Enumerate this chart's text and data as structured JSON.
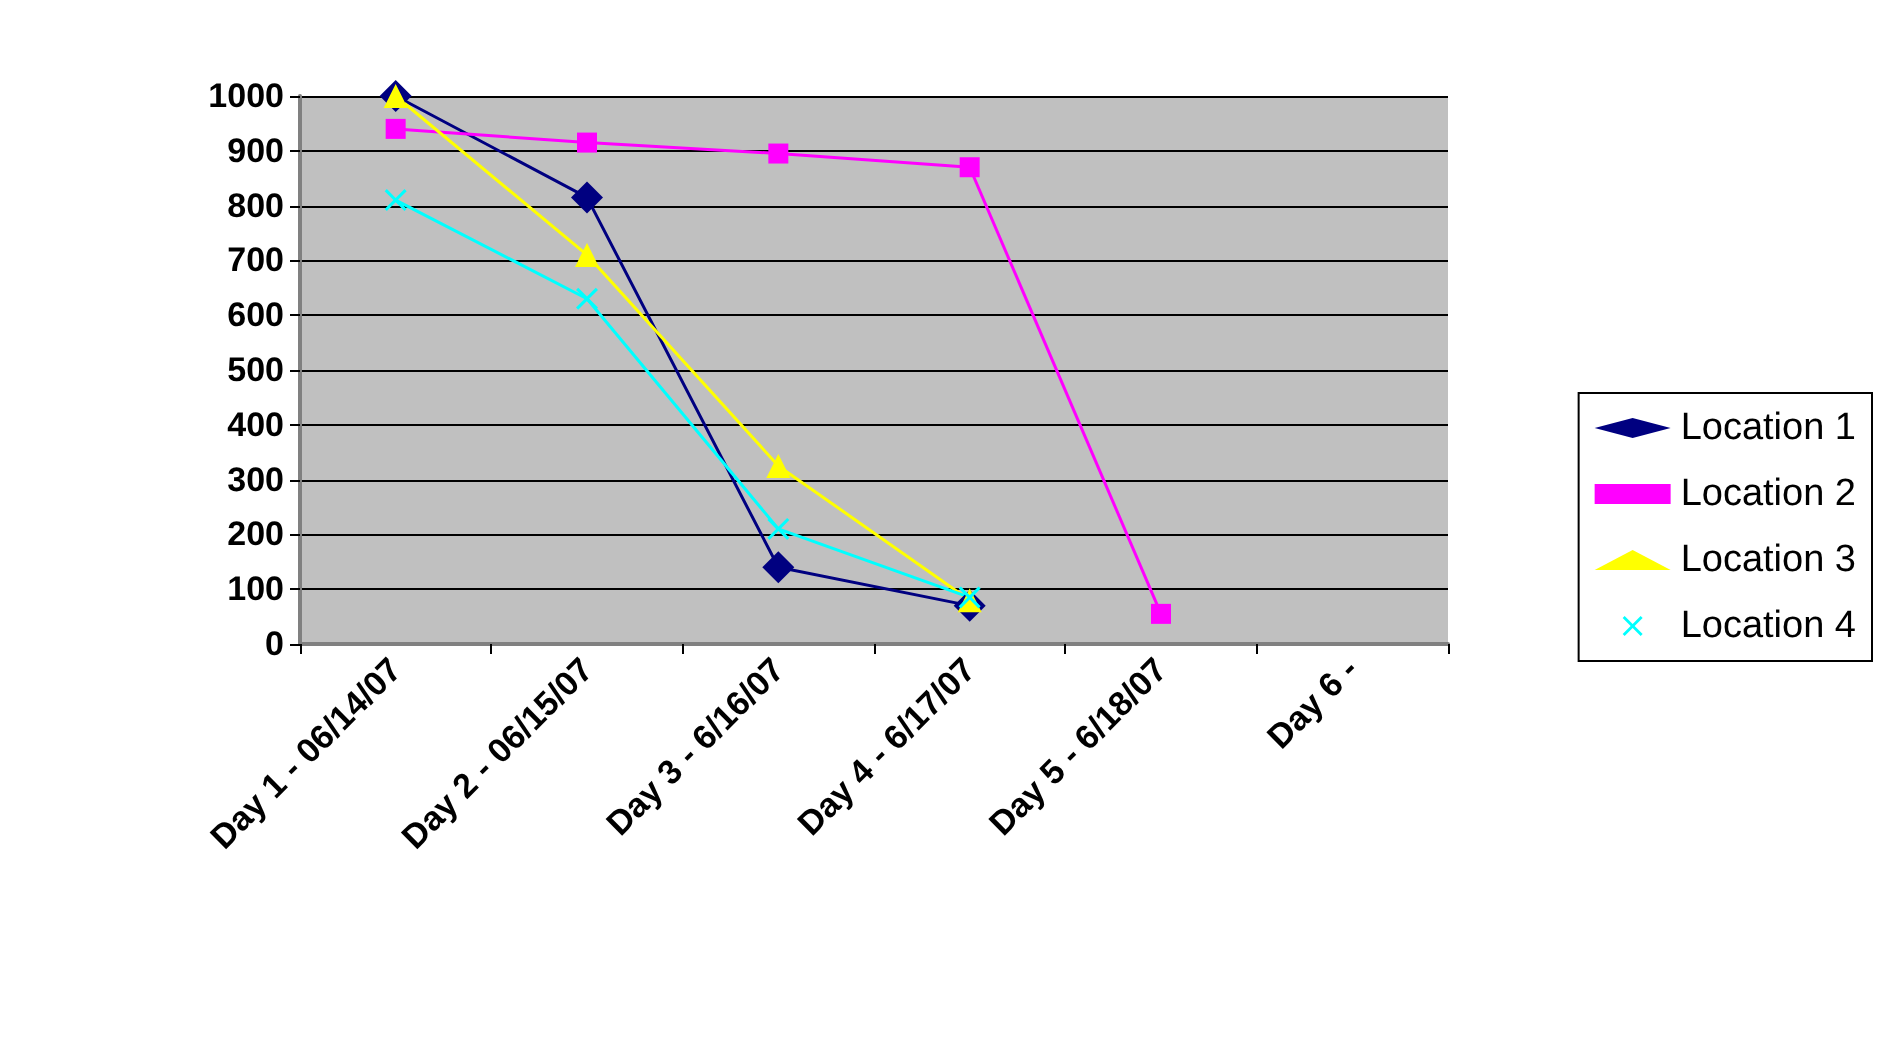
{
  "chart_data": {
    "type": "line",
    "categories": [
      "Day 1 - 06/14/07",
      "Day 2 - 06/15/07",
      "Day 3 - 6/16/07",
      "Day 4 - 6/17/07",
      "Day 5 - 6/18/07",
      "Day 6 -"
    ],
    "series": [
      {
        "name": "Location 1",
        "color": "#000080",
        "marker": "diamond",
        "values": [
          1000,
          815,
          140,
          70,
          null,
          null
        ]
      },
      {
        "name": "Location 2",
        "color": "#ff00ff",
        "marker": "square",
        "values": [
          940,
          915,
          895,
          870,
          55,
          null
        ]
      },
      {
        "name": "Location 3",
        "color": "#ffff00",
        "marker": "triangle",
        "values": [
          1000,
          710,
          325,
          80,
          null,
          null
        ]
      },
      {
        "name": "Location 4",
        "color": "#00ffff",
        "marker": "cross",
        "values": [
          810,
          630,
          210,
          85,
          null,
          null
        ]
      }
    ],
    "ylim": [
      0,
      1000
    ],
    "yticks": [
      0,
      100,
      200,
      300,
      400,
      500,
      600,
      700,
      800,
      900,
      1000
    ],
    "grid": "y",
    "legend": "right",
    "line_style": "solid"
  }
}
